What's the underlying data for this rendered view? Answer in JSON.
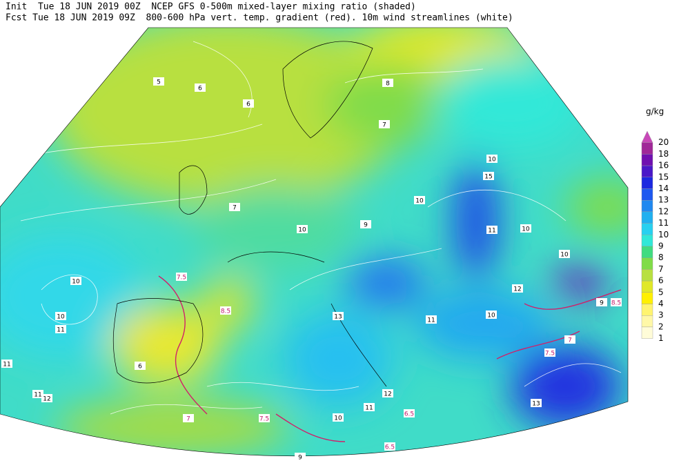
{
  "header": {
    "line1": "Init  Tue 18 JUN 2019 00Z  NCEP GFS 0-500m mixed-layer mixing ratio (shaded)",
    "line2": "Fcst Tue 18 JUN 2019 09Z  800-600 hPa vert. temp. gradient (red). 10m wind streamlines (white)"
  },
  "colorbar": {
    "unit": "g/kg",
    "levels": [
      {
        "value": 20,
        "color": "#c848b8"
      },
      {
        "value": 18,
        "color": "#a02898"
      },
      {
        "value": 16,
        "color": "#7010b0"
      },
      {
        "value": 15,
        "color": "#4a18c8"
      },
      {
        "value": 14,
        "color": "#1c28e0"
      },
      {
        "value": 13,
        "color": "#1e58f0"
      },
      {
        "value": 12,
        "color": "#2088f0"
      },
      {
        "value": 11,
        "color": "#20b0f0"
      },
      {
        "value": 10,
        "color": "#28d0f0"
      },
      {
        "value": 9,
        "color": "#30e8d8"
      },
      {
        "value": 8,
        "color": "#40dc80"
      },
      {
        "value": 7,
        "color": "#80dc48"
      },
      {
        "value": 6,
        "color": "#b8e040"
      },
      {
        "value": 5,
        "color": "#e0e828"
      },
      {
        "value": 4,
        "color": "#fff000"
      },
      {
        "value": 3,
        "color": "#fff470"
      },
      {
        "value": 2,
        "color": "#fff8a8"
      },
      {
        "value": 1,
        "color": "#fffcd8"
      }
    ]
  },
  "map_labels": [
    "10",
    "10",
    "11",
    "11",
    "11",
    "12",
    "7.5",
    "8.5",
    "10",
    "9",
    "10",
    "10",
    "15",
    "11",
    "10",
    "12",
    "10",
    "9",
    "8.5",
    "7.5",
    "7",
    "13",
    "10",
    "11",
    "13",
    "12",
    "6.5",
    "7",
    "7.5",
    "9",
    "6.5",
    "10",
    "11",
    "8",
    "7",
    "6",
    "5",
    "6",
    "7",
    "6"
  ]
}
